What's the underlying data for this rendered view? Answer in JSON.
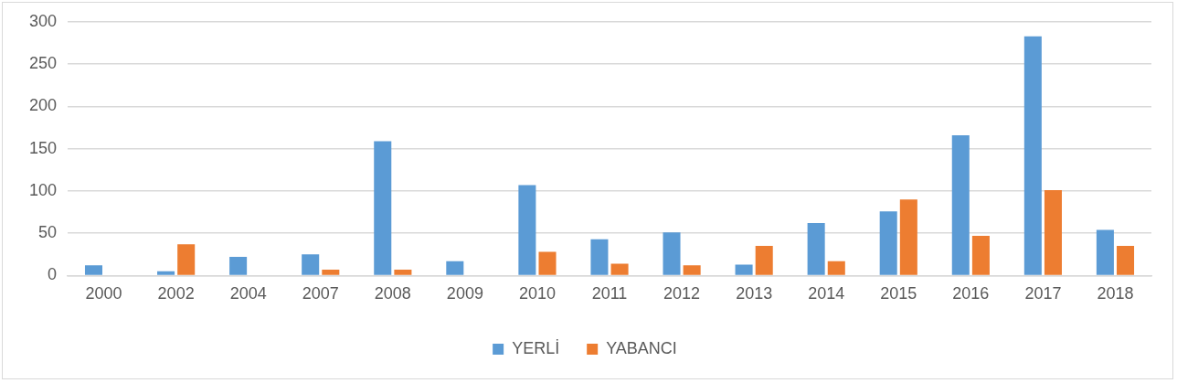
{
  "chart_data": {
    "type": "bar",
    "categories": [
      "2000",
      "2002",
      "2004",
      "2007",
      "2008",
      "2009",
      "2010",
      "2011",
      "2012",
      "2013",
      "2014",
      "2015",
      "2016",
      "2017",
      "2018"
    ],
    "series": [
      {
        "name": "YERLİ",
        "color": "#5b9bd5",
        "values": [
          12,
          5,
          22,
          25,
          159,
          17,
          107,
          43,
          51,
          13,
          62,
          76,
          166,
          283,
          54
        ]
      },
      {
        "name": "YABANCI",
        "color": "#ed7d31",
        "values": [
          null,
          37,
          null,
          7,
          7,
          null,
          28,
          14,
          12,
          35,
          17,
          90,
          47,
          101,
          35
        ]
      }
    ],
    "ylim": [
      0,
      300
    ],
    "yticks": [
      0,
      50,
      100,
      150,
      200,
      250,
      300
    ],
    "grid": "y",
    "legend": "bottom"
  }
}
